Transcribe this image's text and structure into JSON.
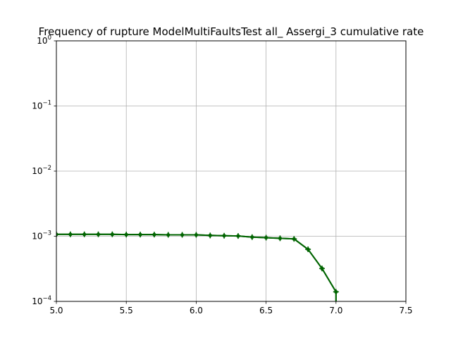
{
  "chart_data": {
    "type": "line",
    "title": "Frequency of rupture ModelMultiFaultsTest all_ Assergi_3 cumulative rate",
    "xlabel": "",
    "ylabel": "",
    "xlim": [
      5.0,
      7.5
    ],
    "ylim": [
      0.0001,
      1
    ],
    "yscale": "log",
    "grid": true,
    "x_ticks": [
      {
        "value": 5.0,
        "label": "5.0"
      },
      {
        "value": 5.5,
        "label": "5.5"
      },
      {
        "value": 6.0,
        "label": "6.0"
      },
      {
        "value": 6.5,
        "label": "6.5"
      },
      {
        "value": 7.0,
        "label": "7.0"
      },
      {
        "value": 7.5,
        "label": "7.5"
      }
    ],
    "y_ticks": [
      {
        "value": 0.0001,
        "base": "10",
        "exp": "−4"
      },
      {
        "value": 0.001,
        "base": "10",
        "exp": "−3"
      },
      {
        "value": 0.01,
        "base": "10",
        "exp": "−2"
      },
      {
        "value": 0.1,
        "base": "10",
        "exp": "−1"
      },
      {
        "value": 1,
        "base": "10",
        "exp": "0"
      }
    ],
    "series": [
      {
        "color": "#006400",
        "marker": "plus",
        "x": [
          5.0,
          5.1,
          5.2,
          5.3,
          5.4,
          5.5,
          5.6,
          5.7,
          5.8,
          5.9,
          6.0,
          6.1,
          6.2,
          6.3,
          6.4,
          6.5,
          6.6,
          6.7,
          6.8,
          6.9,
          7.0
        ],
        "y": [
          0.00107,
          0.00107,
          0.00107,
          0.00107,
          0.00107,
          0.00106,
          0.00106,
          0.00106,
          0.00105,
          0.00105,
          0.00105,
          0.00103,
          0.00102,
          0.00101,
          0.00097,
          0.00095,
          0.00093,
          0.00091,
          0.00063,
          0.00032,
          0.00014
        ]
      },
      {
        "color": "#006400",
        "marker": "dot",
        "x": [
          5.0,
          5.1,
          5.2,
          5.3,
          5.4,
          5.5,
          5.6,
          5.7,
          5.8,
          5.9,
          6.0,
          6.1,
          6.2,
          6.3,
          6.4,
          6.5,
          6.6,
          6.7,
          6.8,
          6.9,
          7.0
        ],
        "y": [
          0.00107,
          0.00107,
          0.00107,
          0.00107,
          0.00107,
          0.00106,
          0.00106,
          0.00106,
          0.00105,
          0.00105,
          0.00105,
          0.00103,
          0.00102,
          0.00101,
          0.00097,
          0.00095,
          0.00093,
          0.00091,
          0.00063,
          0.00032,
          0.00014
        ]
      }
    ]
  }
}
